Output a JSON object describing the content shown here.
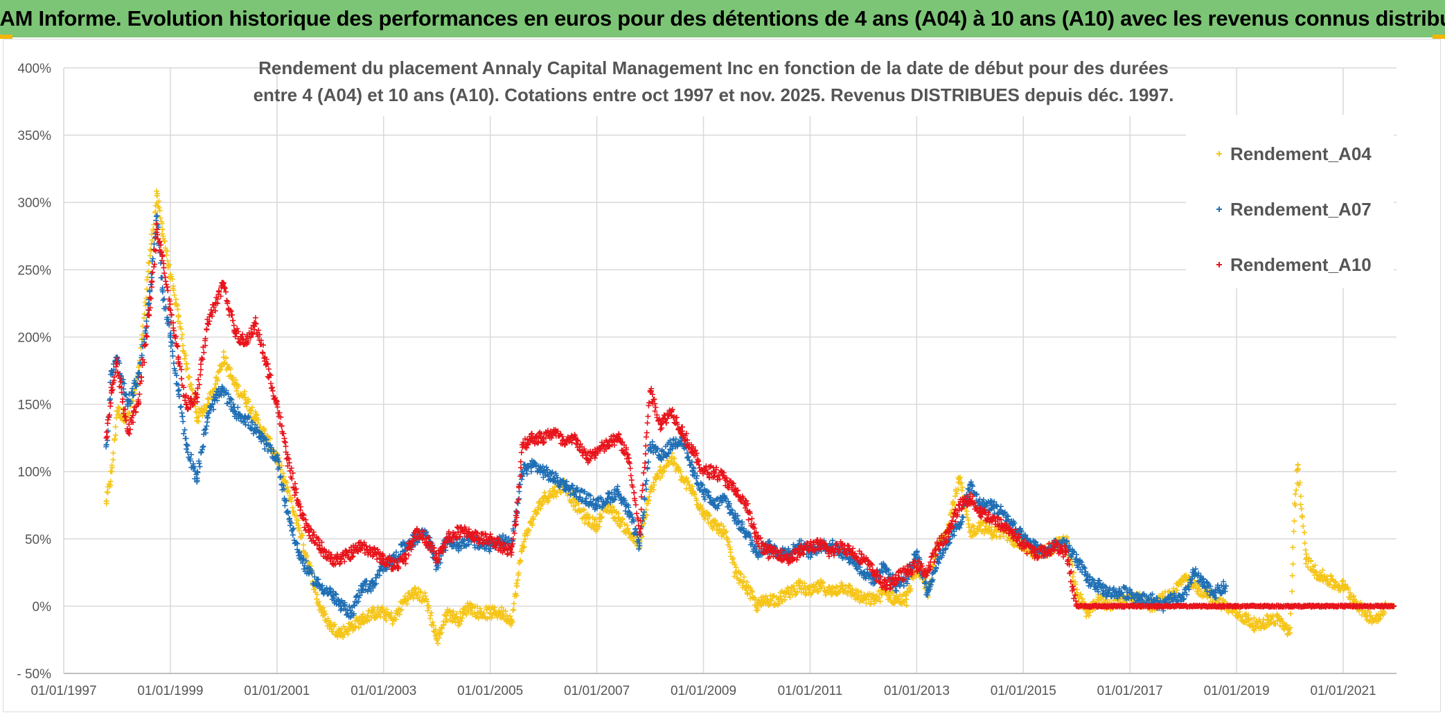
{
  "banner": {
    "title": "ADAM Informe. Evolution historique des performances en euros pour des détentions de 4 ans (A04) à 10 ans (A10) avec les revenus connus distribués"
  },
  "colors": {
    "banner_bg": "#7cc576",
    "accent": "#f2b600",
    "A04": "#f5c518",
    "A07": "#1f6fb5",
    "A10": "#e8141b",
    "grid": "#d9d9d9"
  },
  "chart_data": {
    "type": "scatter",
    "title_lines": [
      "Rendement du placement Annaly Capital Management Inc en fonction de la date de début pour des durées",
      "entre 4 (A04) et 10 ans (A10). Cotations entre oct 1997 et nov. 2025. Revenus DISTRIBUES depuis déc. 1997."
    ],
    "xlabel": "",
    "ylabel": "",
    "x_unit": "year",
    "xlim": [
      1997.0,
      2022.0
    ],
    "ylim": [
      -50,
      400
    ],
    "y_ticks": [
      -50,
      0,
      50,
      100,
      150,
      200,
      250,
      300,
      350,
      400
    ],
    "y_tick_labels": [
      "- 50%",
      "0%",
      "50%",
      "100%",
      "150%",
      "200%",
      "250%",
      "300%",
      "350%",
      "400%"
    ],
    "x_ticks": [
      1997,
      1999,
      2001,
      2003,
      2005,
      2007,
      2009,
      2011,
      2013,
      2015,
      2017,
      2019,
      2021
    ],
    "x_tick_labels": [
      "01/01/1997",
      "01/01/1999",
      "01/01/2001",
      "01/01/2003",
      "01/01/2005",
      "01/01/2007",
      "01/01/2009",
      "01/01/2011",
      "01/01/2013",
      "01/01/2015",
      "01/01/2017",
      "01/01/2019",
      "01/01/2021"
    ],
    "legend_position": "top-right",
    "marker": "+",
    "series": [
      {
        "name": "Rendement_A04",
        "color": "#f5c518",
        "x": [
          1997.8,
          1997.9,
          1998.0,
          1998.2,
          1998.4,
          1998.6,
          1998.75,
          1998.85,
          1999.0,
          1999.15,
          1999.3,
          1999.5,
          1999.7,
          1999.85,
          2000.0,
          2000.2,
          2000.4,
          2000.6,
          2000.8,
          2001.0,
          2001.2,
          2001.4,
          2001.6,
          2001.8,
          2002.0,
          2002.2,
          2002.4,
          2002.6,
          2002.8,
          2003.0,
          2003.2,
          2003.4,
          2003.6,
          2003.8,
          2004.0,
          2004.2,
          2004.4,
          2004.6,
          2004.8,
          2005.0,
          2005.2,
          2005.4,
          2005.5,
          2005.6,
          2005.8,
          2006.0,
          2006.2,
          2006.4,
          2006.6,
          2006.8,
          2007.0,
          2007.2,
          2007.4,
          2007.6,
          2007.8,
          2008.0,
          2008.2,
          2008.4,
          2008.6,
          2008.8,
          2009.0,
          2009.2,
          2009.4,
          2009.6,
          2009.8,
          2010.0,
          2010.2,
          2010.4,
          2010.6,
          2010.8,
          2011.0,
          2011.2,
          2011.4,
          2011.6,
          2011.8,
          2012.0,
          2012.2,
          2012.4,
          2012.6,
          2012.8,
          2013.0,
          2013.2,
          2013.4,
          2013.6,
          2013.8,
          2014.0,
          2014.2,
          2014.4,
          2014.6,
          2014.8,
          2015.0,
          2015.2,
          2015.4,
          2015.6,
          2015.8,
          2016.0,
          2016.2,
          2016.4,
          2016.6,
          2016.8,
          2017.0,
          2017.2,
          2017.4,
          2017.6,
          2017.8,
          2018.0,
          2018.2,
          2018.4,
          2018.6,
          2018.8,
          2019.0,
          2019.2,
          2019.4,
          2019.6,
          2019.8,
          2020.0,
          2020.1,
          2020.15,
          2020.3,
          2020.5,
          2020.7,
          2020.9,
          2021.0,
          2021.2,
          2021.4,
          2021.6,
          2021.8,
          2021.95
        ],
        "y": [
          78,
          100,
          145,
          140,
          170,
          255,
          305,
          280,
          245,
          215,
          180,
          140,
          150,
          165,
          185,
          165,
          155,
          140,
          125,
          110,
          85,
          60,
          30,
          0,
          -15,
          -20,
          -15,
          -10,
          -5,
          -5,
          -10,
          5,
          10,
          5,
          -25,
          -5,
          -10,
          0,
          -5,
          -5,
          -5,
          -10,
          15,
          45,
          65,
          80,
          85,
          90,
          75,
          65,
          60,
          75,
          65,
          55,
          45,
          85,
          100,
          110,
          95,
          85,
          70,
          60,
          55,
          25,
          15,
          0,
          5,
          5,
          10,
          15,
          10,
          15,
          10,
          15,
          10,
          5,
          5,
          10,
          5,
          5,
          30,
          10,
          45,
          60,
          95,
          55,
          60,
          55,
          55,
          50,
          45,
          40,
          40,
          45,
          50,
          10,
          -5,
          5,
          0,
          5,
          5,
          5,
          0,
          5,
          10,
          20,
          15,
          10,
          5,
          0,
          -5,
          -10,
          -15,
          -10,
          -10,
          -20,
          75,
          105,
          35,
          25,
          20,
          15,
          15,
          5,
          -5,
          -10,
          0,
          0
        ]
      },
      {
        "name": "Rendement_A07",
        "color": "#1f6fb5",
        "x": [
          1997.8,
          1997.9,
          1998.0,
          1998.2,
          1998.4,
          1998.6,
          1998.75,
          1998.85,
          1999.0,
          1999.15,
          1999.3,
          1999.5,
          1999.7,
          1999.85,
          2000.0,
          2000.2,
          2000.4,
          2000.6,
          2000.8,
          2001.0,
          2001.2,
          2001.4,
          2001.6,
          2001.8,
          2002.0,
          2002.2,
          2002.4,
          2002.6,
          2002.8,
          2003.0,
          2003.2,
          2003.4,
          2003.6,
          2003.8,
          2004.0,
          2004.2,
          2004.4,
          2004.6,
          2004.8,
          2005.0,
          2005.2,
          2005.4,
          2005.5,
          2005.6,
          2005.8,
          2006.0,
          2006.2,
          2006.4,
          2006.6,
          2006.8,
          2007.0,
          2007.2,
          2007.4,
          2007.6,
          2007.8,
          2008.0,
          2008.2,
          2008.4,
          2008.6,
          2008.8,
          2009.0,
          2009.2,
          2009.4,
          2009.6,
          2009.8,
          2010.0,
          2010.2,
          2010.4,
          2010.6,
          2010.8,
          2011.0,
          2011.2,
          2011.4,
          2011.6,
          2011.8,
          2012.0,
          2012.2,
          2012.4,
          2012.6,
          2012.8,
          2013.0,
          2013.2,
          2013.4,
          2013.6,
          2013.8,
          2014.0,
          2014.2,
          2014.4,
          2014.6,
          2014.8,
          2015.0,
          2015.2,
          2015.4,
          2015.6,
          2015.8,
          2016.0,
          2016.2,
          2016.4,
          2016.6,
          2016.8,
          2017.0,
          2017.2,
          2017.4,
          2017.6,
          2017.8,
          2018.0,
          2018.2,
          2018.4,
          2018.6,
          2018.8
        ],
        "y": [
          120,
          175,
          185,
          150,
          170,
          225,
          290,
          235,
          200,
          160,
          120,
          95,
          140,
          155,
          160,
          145,
          140,
          130,
          120,
          110,
          70,
          40,
          25,
          15,
          10,
          0,
          -5,
          15,
          15,
          30,
          35,
          45,
          50,
          55,
          30,
          50,
          45,
          50,
          45,
          45,
          50,
          45,
          70,
          100,
          105,
          100,
          95,
          90,
          85,
          80,
          75,
          80,
          85,
          70,
          45,
          120,
          110,
          120,
          125,
          100,
          85,
          75,
          80,
          65,
          55,
          40,
          45,
          40,
          40,
          45,
          40,
          45,
          45,
          40,
          35,
          25,
          20,
          30,
          15,
          20,
          40,
          10,
          35,
          50,
          60,
          90,
          75,
          75,
          70,
          60,
          50,
          45,
          40,
          45,
          45,
          35,
          20,
          15,
          10,
          10,
          10,
          5,
          5,
          0,
          5,
          5,
          25,
          15,
          10,
          15
        ]
      },
      {
        "name": "Rendement_A10",
        "color": "#e8141b",
        "x": [
          1997.8,
          1997.9,
          1998.0,
          1998.2,
          1998.4,
          1998.6,
          1998.75,
          1998.85,
          1999.0,
          1999.15,
          1999.3,
          1999.5,
          1999.7,
          1999.85,
          2000.0,
          2000.2,
          2000.4,
          2000.6,
          2000.8,
          2001.0,
          2001.2,
          2001.4,
          2001.6,
          2001.8,
          2002.0,
          2002.2,
          2002.4,
          2002.6,
          2002.8,
          2003.0,
          2003.2,
          2003.4,
          2003.6,
          2003.8,
          2004.0,
          2004.2,
          2004.4,
          2004.6,
          2004.8,
          2005.0,
          2005.2,
          2005.4,
          2005.5,
          2005.6,
          2005.8,
          2006.0,
          2006.2,
          2006.4,
          2006.6,
          2006.8,
          2007.0,
          2007.2,
          2007.4,
          2007.6,
          2007.8,
          2008.0,
          2008.2,
          2008.4,
          2008.6,
          2008.8,
          2009.0,
          2009.2,
          2009.4,
          2009.6,
          2009.8,
          2010.0,
          2010.2,
          2010.4,
          2010.6,
          2010.8,
          2011.0,
          2011.2,
          2011.4,
          2011.6,
          2011.8,
          2012.0,
          2012.2,
          2012.4,
          2012.6,
          2012.8,
          2013.0,
          2013.2,
          2013.4,
          2013.6,
          2013.8,
          2014.0,
          2014.2,
          2014.4,
          2014.6,
          2014.8,
          2015.0,
          2015.2,
          2015.4,
          2015.6,
          2015.8,
          2016.0,
          2016.5,
          2017.0,
          2017.5,
          2018.0,
          2018.5,
          2019.0,
          2019.5,
          2020.0,
          2020.5,
          2021.0,
          2021.5,
          2021.95
        ],
        "y": [
          125,
          160,
          180,
          130,
          150,
          220,
          280,
          260,
          220,
          185,
          150,
          155,
          210,
          225,
          240,
          205,
          195,
          210,
          180,
          150,
          110,
          75,
          55,
          45,
          35,
          35,
          40,
          45,
          40,
          35,
          30,
          35,
          55,
          50,
          35,
          50,
          55,
          55,
          50,
          50,
          45,
          40,
          70,
          120,
          125,
          125,
          130,
          120,
          125,
          110,
          115,
          120,
          125,
          110,
          55,
          160,
          135,
          145,
          130,
          115,
          100,
          100,
          95,
          85,
          75,
          50,
          40,
          40,
          35,
          40,
          45,
          45,
          40,
          45,
          40,
          35,
          25,
          15,
          20,
          25,
          30,
          25,
          45,
          55,
          75,
          80,
          70,
          65,
          60,
          55,
          45,
          40,
          40,
          45,
          40,
          0,
          0,
          0,
          0,
          0,
          0,
          0,
          0,
          0,
          0,
          0,
          0,
          0
        ]
      }
    ]
  }
}
